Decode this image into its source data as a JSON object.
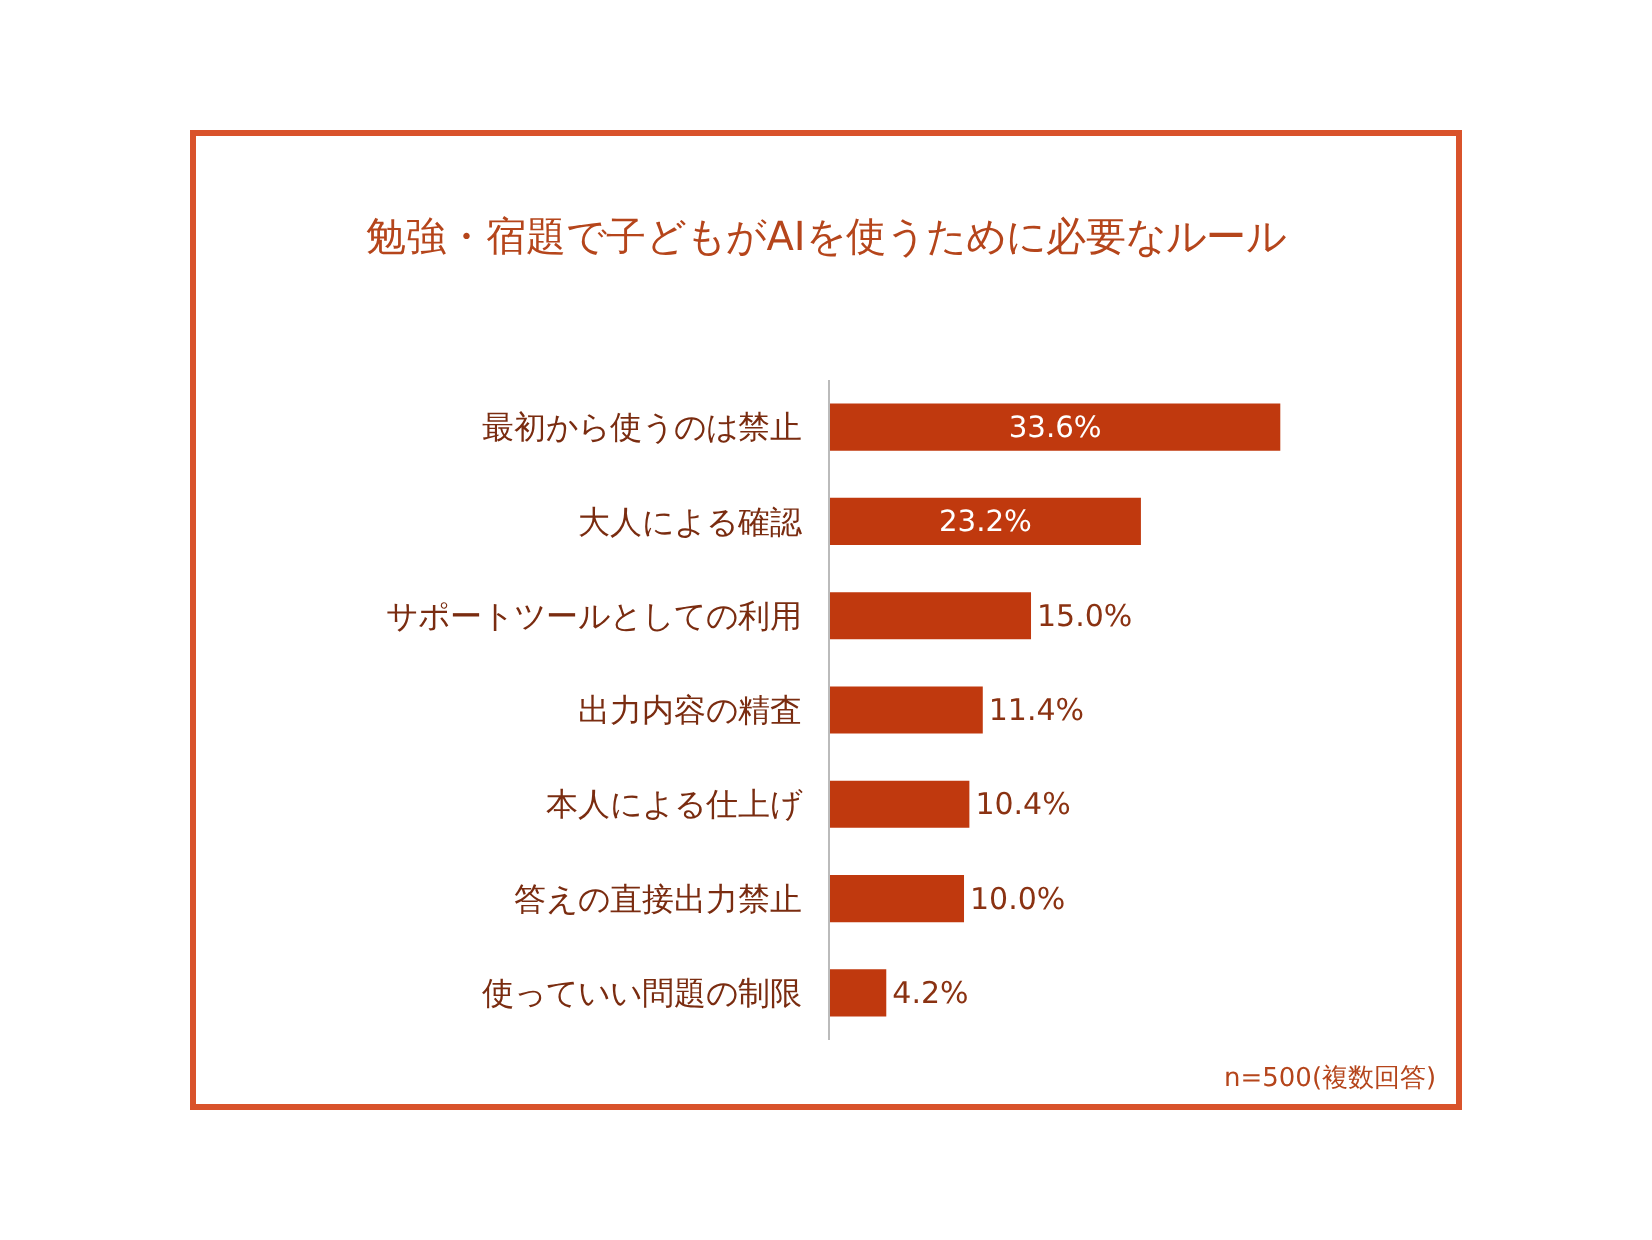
{
  "chart_data": {
    "type": "bar",
    "orientation": "horizontal",
    "title": "勉強・宿題で子どもがAIを使うために必要なルール",
    "categories": [
      "最初から使うのは禁止",
      "大人による確認",
      "サポートツールとしての利用",
      "出力内容の精査",
      "本人による仕上げ",
      "答えの直接出力禁止",
      "使っていい問題の制限"
    ],
    "values": [
      33.6,
      23.2,
      15.0,
      11.4,
      10.4,
      10.0,
      4.2
    ],
    "value_labels": [
      "33.6%",
      "23.2%",
      "15.0%",
      "11.4%",
      "10.4%",
      "10.0%",
      "4.2%"
    ],
    "color": "#c0390e",
    "tick_labels": "y",
    "grid": false,
    "legend": false,
    "annotations": [
      "n=500(複数回答)"
    ]
  }
}
